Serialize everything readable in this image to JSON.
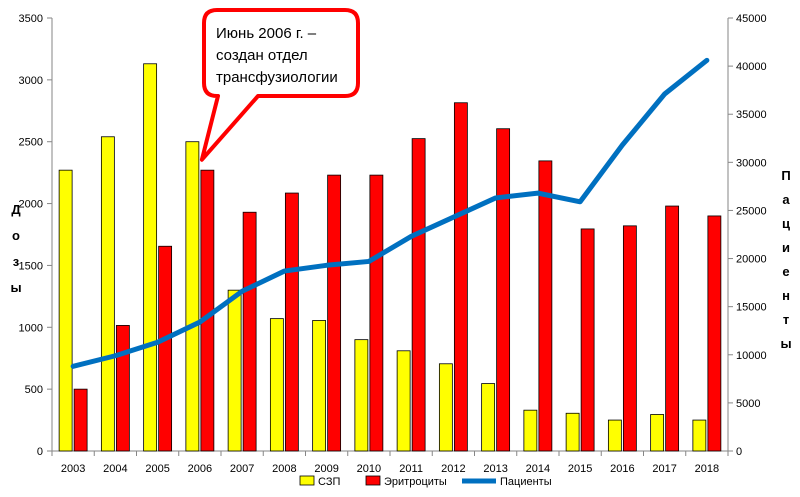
{
  "chart_data": {
    "type": "bar",
    "categories": [
      "2003",
      "2004",
      "2005",
      "2006",
      "2007",
      "2008",
      "2009",
      "2010",
      "2011",
      "2012",
      "2013",
      "2014",
      "2015",
      "2016",
      "2017",
      "2018"
    ],
    "series": [
      {
        "name": "СЗП",
        "type": "bar",
        "axis": "left",
        "color": "#ffff00",
        "values": [
          2270,
          2540,
          3130,
          2500,
          1300,
          1070,
          1055,
          900,
          810,
          705,
          545,
          330,
          305,
          250,
          295,
          250
        ]
      },
      {
        "name": "Эритроциты",
        "type": "bar",
        "axis": "left",
        "color": "#ff0000",
        "values": [
          500,
          1015,
          1655,
          2270,
          1930,
          2085,
          2230,
          2230,
          2525,
          2815,
          2605,
          2345,
          1795,
          1820,
          1980,
          1900
        ]
      },
      {
        "name": "Пациенты",
        "type": "line",
        "axis": "right",
        "color": "#0070c0",
        "values": [
          8800,
          9900,
          11300,
          13400,
          16600,
          18700,
          19300,
          19700,
          22300,
          24300,
          26300,
          26800,
          25900,
          31800,
          37100,
          40600
        ]
      }
    ],
    "ylabel_left": "Дозы",
    "ylabel_right": "Пациенты",
    "ylim_left": [
      0,
      3500
    ],
    "yticks_left": [
      0,
      500,
      1000,
      1500,
      2000,
      2500,
      3000,
      3500
    ],
    "ylim_right": [
      0,
      45000
    ],
    "yticks_right": [
      0,
      5000,
      10000,
      15000,
      20000,
      25000,
      30000,
      35000,
      40000,
      45000
    ],
    "legend_position": "bottom",
    "grid": false,
    "annotation": {
      "lines": [
        "Июнь 2006 г. –",
        "создан  отдел",
        "трансфузиологии"
      ],
      "points_to": "2006",
      "border_color": "#ff0000"
    }
  }
}
